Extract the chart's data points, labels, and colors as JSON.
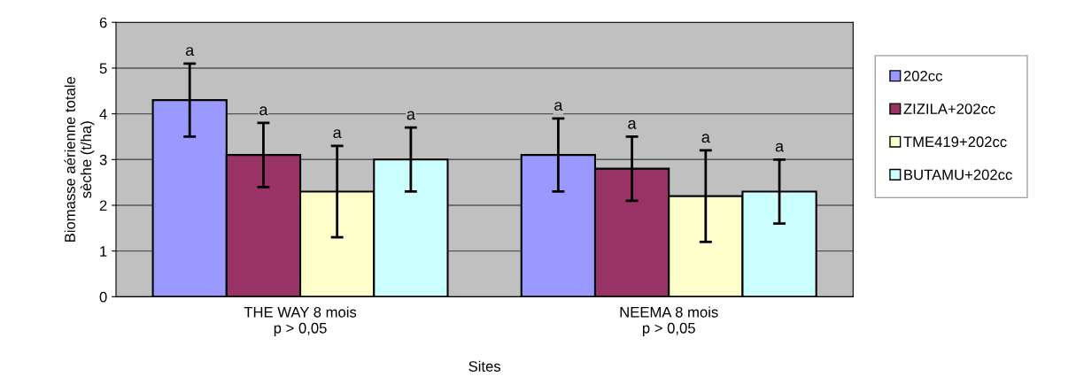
{
  "chart_data": {
    "type": "bar",
    "xlabel": "Sites",
    "ylabel": "Biomasse aérienne totale\nsèche (t/ha)",
    "categories": [
      "THE WAY 8 mois\np > 0,05",
      "NEEMA 8 mois\np > 0,05"
    ],
    "series": [
      {
        "name": "202cc",
        "color": "#9999ff",
        "values": [
          4.3,
          3.1
        ],
        "errors": [
          0.8,
          0.8
        ]
      },
      {
        "name": "ZIZILA+202cc",
        "color": "#993366",
        "values": [
          3.1,
          2.8
        ],
        "errors": [
          0.7,
          0.7
        ]
      },
      {
        "name": "TME419+202cc",
        "color": "#ffffcc",
        "values": [
          2.3,
          2.2
        ],
        "errors": [
          1.0,
          1.0
        ]
      },
      {
        "name": "BUTAMU+202cc",
        "color": "#ccffff",
        "values": [
          3.0,
          2.3
        ],
        "errors": [
          0.7,
          0.7
        ]
      }
    ],
    "annotations": [
      "a",
      "a",
      "a",
      "a",
      "a",
      "a",
      "a",
      "a"
    ],
    "ylim": [
      0,
      6
    ],
    "yticks": [
      0,
      1,
      2,
      3,
      4,
      5,
      6
    ],
    "grid": "y",
    "legend": "right"
  }
}
